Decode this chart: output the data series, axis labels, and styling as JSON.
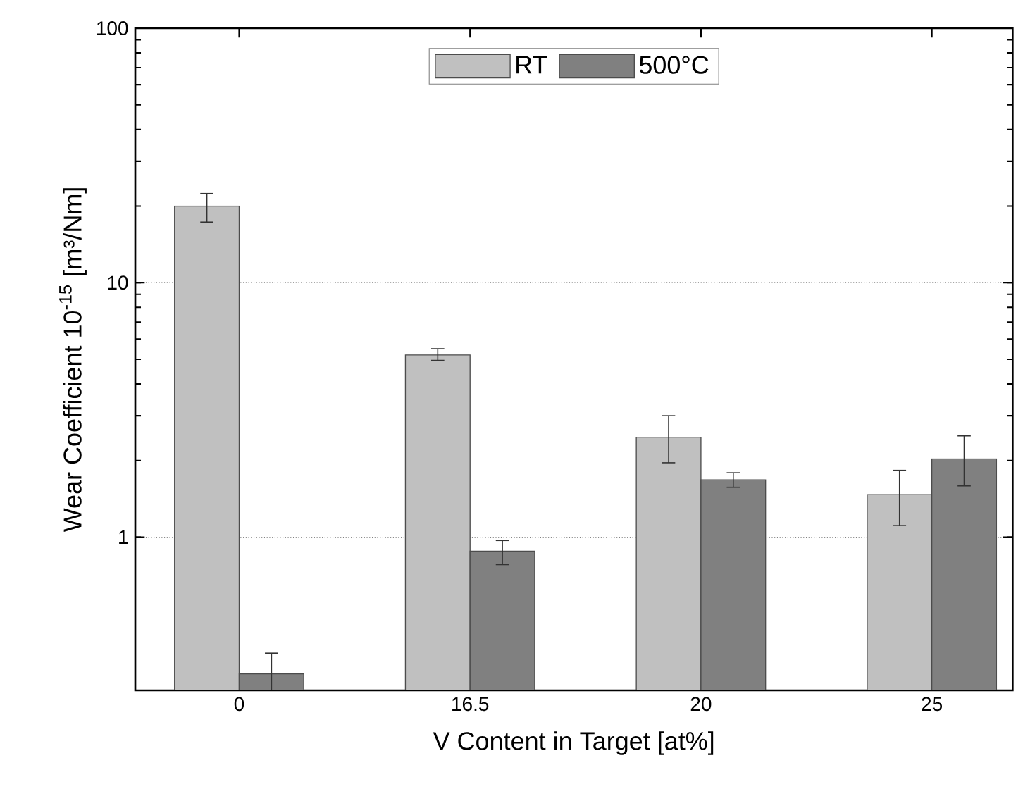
{
  "chart_data": {
    "type": "bar",
    "xlabel": "V Content in Target [at%]",
    "ylabel": "Wear Coefficient 10$^{-15}$ [m³/Nm]",
    "categories": [
      "0",
      "16.5",
      "20",
      "25"
    ],
    "series": [
      {
        "name": "RT",
        "color": "#c0c0c0",
        "values": [
          20,
          5.2,
          2.47,
          1.47
        ],
        "errors": [
          [
            17.3,
            22.4
          ],
          [
            4.95,
            5.5
          ],
          [
            1.96,
            3.0
          ],
          [
            1.11,
            1.83
          ]
        ]
      },
      {
        "name": "500°C",
        "color": "#808080",
        "values": [
          0.29,
          0.88,
          1.68,
          2.03
        ],
        "errors": [
          [
            0.25,
            0.35
          ],
          [
            0.78,
            0.97
          ],
          [
            1.57,
            1.79
          ],
          [
            1.59,
            2.5
          ]
        ]
      }
    ],
    "log": "y",
    "ylim": [
      0.25,
      100
    ],
    "yticks": [
      1,
      10,
      100
    ],
    "grid": "y",
    "legend": "top"
  }
}
